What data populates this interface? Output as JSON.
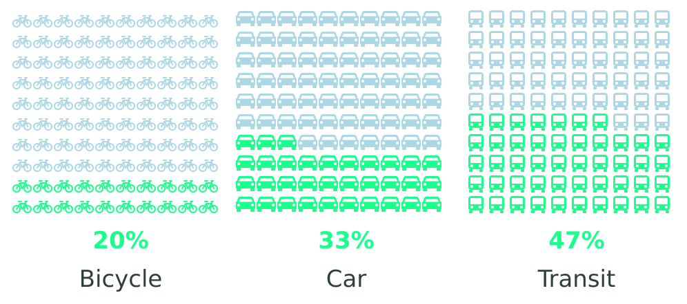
{
  "colors": {
    "active": "#1aff8c",
    "inactive": "#acd8e6",
    "label": "#2f3f3f"
  },
  "chart_data": {
    "type": "pictogram",
    "grid": "10x10",
    "icon_total": 100,
    "categories": [
      "Bicycle",
      "Car",
      "Transit"
    ],
    "values": [
      20,
      33,
      47
    ],
    "items": [
      {
        "label": "Bicycle",
        "value": 20,
        "value_label": "20%",
        "icon": "bicycle-icon"
      },
      {
        "label": "Car",
        "value": 33,
        "value_label": "33%",
        "icon": "car-icon"
      },
      {
        "label": "Transit",
        "value": 47,
        "value_label": "47%",
        "icon": "bus-icon"
      }
    ]
  }
}
